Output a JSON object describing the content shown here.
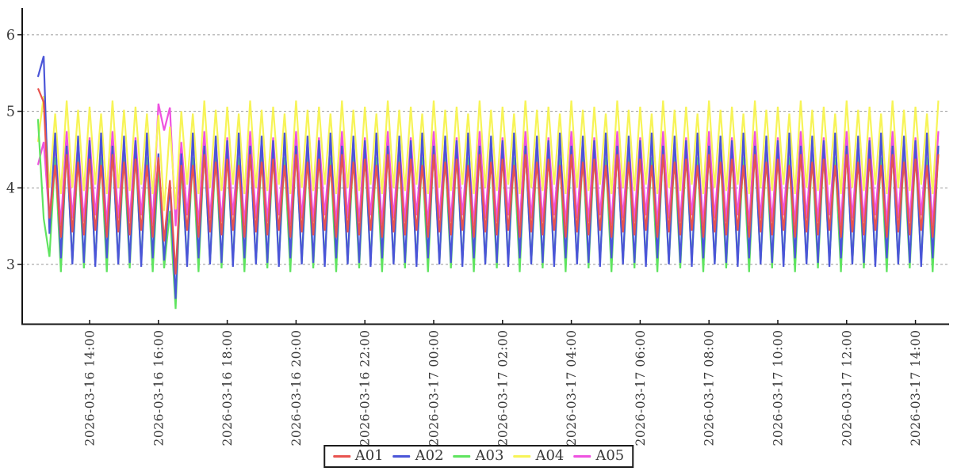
{
  "chart_data": {
    "type": "line",
    "title": "",
    "xlabel": "",
    "ylabel": "",
    "x_start": "2026-03-16 12:30",
    "x_step_minutes": 10,
    "x_count": 158,
    "x_tick_labels": [
      "2026-03-16 14:00",
      "2026-03-16 16:00",
      "2026-03-16 18:00",
      "2026-03-16 20:00",
      "2026-03-16 22:00",
      "2026-03-17 00:00",
      "2026-03-17 02:00",
      "2026-03-17 04:00",
      "2026-03-17 06:00",
      "2026-03-17 08:00",
      "2026-03-17 10:00",
      "2026-03-17 12:00",
      "2026-03-17 14:00"
    ],
    "x_tick_indices": [
      9,
      21,
      33,
      45,
      57,
      69,
      81,
      93,
      105,
      117,
      129,
      141,
      153
    ],
    "y_tick_labels": [
      "3",
      "4",
      "5",
      "6"
    ],
    "y_ticks": [
      3,
      4,
      5,
      6
    ],
    "ylim": [
      2.22,
      6.35
    ],
    "grid": "horizontal-dashed",
    "legend_position": "bottom-center",
    "axis_color": "#151515",
    "grid_color": "#999999",
    "text_color": "#3a3a3a",
    "series": [
      {
        "name": "A01",
        "color": "#e8534f",
        "values": [
          5.3,
          5.12,
          3.6,
          4.3,
          3.35,
          4.44,
          3.42,
          4.34,
          3.38,
          4.38,
          3.44,
          4.3,
          3.35,
          4.44,
          3.42,
          4.34,
          3.38,
          4.38,
          3.44,
          4.3,
          3.35,
          4.4,
          3.3,
          4.1,
          2.87,
          4.3,
          3.44,
          4.3,
          3.35,
          4.44,
          3.42,
          4.34,
          3.38,
          4.38,
          3.44,
          4.3,
          3.35,
          4.44,
          3.42,
          4.34,
          3.38,
          4.38,
          3.44,
          4.3,
          3.35,
          4.44,
          3.42,
          4.34,
          3.38,
          4.38,
          3.44,
          4.3,
          3.35,
          4.44,
          3.42,
          4.34,
          3.38,
          4.38,
          3.44,
          4.3,
          3.35,
          4.44,
          3.42,
          4.34,
          3.38,
          4.38,
          3.44,
          4.3,
          3.35,
          4.44,
          3.42,
          4.34,
          3.38,
          4.38,
          3.44,
          4.3,
          3.35,
          4.44,
          3.42,
          4.34,
          3.38,
          4.38,
          3.44,
          4.3,
          3.35,
          4.44,
          3.42,
          4.34,
          3.38,
          4.38,
          3.44,
          4.3,
          3.35,
          4.44,
          3.42,
          4.34,
          3.38,
          4.38,
          3.44,
          4.3,
          3.35,
          4.44,
          3.42,
          4.34,
          3.38,
          4.38,
          3.44,
          4.3,
          3.35,
          4.44,
          3.42,
          4.34,
          3.38,
          4.38,
          3.44,
          4.3,
          3.35,
          4.44,
          3.42,
          4.34,
          3.38,
          4.38,
          3.44,
          4.3,
          3.35,
          4.44,
          3.42,
          4.34,
          3.38,
          4.38,
          3.44,
          4.3,
          3.35,
          4.44,
          3.42,
          4.34,
          3.38,
          4.38,
          3.44,
          4.3,
          3.35,
          4.44,
          3.42,
          4.34,
          3.38,
          4.38,
          3.44,
          4.3,
          3.35,
          4.44,
          3.42,
          4.34,
          3.38,
          4.38,
          3.44,
          4.3,
          3.35,
          4.44
        ]
      },
      {
        "name": "A02",
        "color": "#4a55d8",
        "values": [
          5.45,
          5.72,
          3.4,
          4.72,
          3.08,
          4.55,
          3.0,
          4.68,
          3.02,
          4.62,
          2.97,
          4.72,
          3.08,
          4.55,
          3.0,
          4.68,
          3.02,
          4.62,
          2.97,
          4.72,
          3.08,
          4.45,
          3.05,
          4.05,
          2.55,
          4.45,
          2.97,
          4.72,
          3.08,
          4.55,
          3.0,
          4.68,
          3.02,
          4.62,
          2.97,
          4.72,
          3.08,
          4.55,
          3.0,
          4.68,
          3.02,
          4.62,
          2.97,
          4.72,
          3.08,
          4.55,
          3.0,
          4.68,
          3.02,
          4.62,
          2.97,
          4.72,
          3.08,
          4.55,
          3.0,
          4.68,
          3.02,
          4.62,
          2.97,
          4.72,
          3.08,
          4.55,
          3.0,
          4.68,
          3.02,
          4.62,
          2.97,
          4.72,
          3.08,
          4.55,
          3.0,
          4.68,
          3.02,
          4.62,
          2.97,
          4.72,
          3.08,
          4.55,
          3.0,
          4.68,
          3.02,
          4.62,
          2.97,
          4.72,
          3.08,
          4.55,
          3.0,
          4.68,
          3.02,
          4.62,
          2.97,
          4.72,
          3.08,
          4.55,
          3.0,
          4.68,
          3.02,
          4.62,
          2.97,
          4.72,
          3.08,
          4.55,
          3.0,
          4.68,
          3.02,
          4.62,
          2.97,
          4.72,
          3.08,
          4.55,
          3.0,
          4.68,
          3.02,
          4.62,
          2.97,
          4.72,
          3.08,
          4.55,
          3.0,
          4.68,
          3.02,
          4.62,
          2.97,
          4.72,
          3.08,
          4.55,
          3.0,
          4.68,
          3.02,
          4.62,
          2.97,
          4.72,
          3.08,
          4.55,
          3.0,
          4.68,
          3.02,
          4.62,
          2.97,
          4.72,
          3.08,
          4.55,
          3.0,
          4.68,
          3.02,
          4.62,
          2.97,
          4.72,
          3.08,
          4.55,
          3.0,
          4.68,
          3.02,
          4.62,
          2.97,
          4.72,
          3.08,
          4.55
        ]
      },
      {
        "name": "A03",
        "color": "#5fe45f",
        "values": [
          4.9,
          3.6,
          3.1,
          4.4,
          2.9,
          4.55,
          3.02,
          4.44,
          2.95,
          4.48,
          3.04,
          4.4,
          2.9,
          4.55,
          3.02,
          4.44,
          2.95,
          4.48,
          3.04,
          4.4,
          2.9,
          4.3,
          2.95,
          3.7,
          2.42,
          4.3,
          3.04,
          4.4,
          2.9,
          4.55,
          3.02,
          4.44,
          2.95,
          4.48,
          3.04,
          4.4,
          2.9,
          4.55,
          3.02,
          4.44,
          2.95,
          4.48,
          3.04,
          4.4,
          2.9,
          4.55,
          3.02,
          4.44,
          2.95,
          4.48,
          3.04,
          4.4,
          2.9,
          4.55,
          3.02,
          4.44,
          2.95,
          4.48,
          3.04,
          4.4,
          2.9,
          4.55,
          3.02,
          4.44,
          2.95,
          4.48,
          3.04,
          4.4,
          2.9,
          4.55,
          3.02,
          4.44,
          2.95,
          4.48,
          3.04,
          4.4,
          2.9,
          4.55,
          3.02,
          4.44,
          2.95,
          4.48,
          3.04,
          4.4,
          2.9,
          4.55,
          3.02,
          4.44,
          2.95,
          4.48,
          3.04,
          4.4,
          2.9,
          4.55,
          3.02,
          4.44,
          2.95,
          4.48,
          3.04,
          4.4,
          2.9,
          4.55,
          3.02,
          4.44,
          2.95,
          4.48,
          3.04,
          4.4,
          2.9,
          4.55,
          3.02,
          4.44,
          2.95,
          4.48,
          3.04,
          4.4,
          2.9,
          4.55,
          3.02,
          4.44,
          2.95,
          4.48,
          3.04,
          4.4,
          2.9,
          4.55,
          3.02,
          4.44,
          2.95,
          4.48,
          3.04,
          4.4,
          2.9,
          4.55,
          3.02,
          4.44,
          2.95,
          4.48,
          3.04,
          4.4,
          2.9,
          4.55,
          3.02,
          4.44,
          2.95,
          4.48,
          3.04,
          4.4,
          2.9,
          4.55,
          3.02,
          4.44,
          2.95,
          4.48,
          3.04,
          4.4,
          2.9,
          4.55
        ]
      },
      {
        "name": "A04",
        "color": "#f7f457",
        "values": [
          4.6,
          5.2,
          4.0,
          4.97,
          3.92,
          5.14,
          4.0,
          5.02,
          3.96,
          5.06,
          4.04,
          4.97,
          3.92,
          5.14,
          4.0,
          5.02,
          3.96,
          5.06,
          4.04,
          4.97,
          3.92,
          4.95,
          3.7,
          4.8,
          3.72,
          5.0,
          4.04,
          4.97,
          3.92,
          5.14,
          4.0,
          5.02,
          3.96,
          5.06,
          4.04,
          4.97,
          3.92,
          5.14,
          4.0,
          5.02,
          3.96,
          5.06,
          4.04,
          4.97,
          3.92,
          5.14,
          4.0,
          5.02,
          3.96,
          5.06,
          4.04,
          4.97,
          3.92,
          5.14,
          4.0,
          5.02,
          3.96,
          5.06,
          4.04,
          4.97,
          3.92,
          5.14,
          4.0,
          5.02,
          3.96,
          5.06,
          4.04,
          4.97,
          3.92,
          5.14,
          4.0,
          5.02,
          3.96,
          5.06,
          4.04,
          4.97,
          3.92,
          5.14,
          4.0,
          5.02,
          3.96,
          5.06,
          4.04,
          4.97,
          3.92,
          5.14,
          4.0,
          5.02,
          3.96,
          5.06,
          4.04,
          4.97,
          3.92,
          5.14,
          4.0,
          5.02,
          3.96,
          5.06,
          4.04,
          4.97,
          3.92,
          5.14,
          4.0,
          5.02,
          3.96,
          5.06,
          4.04,
          4.97,
          3.92,
          5.14,
          4.0,
          5.02,
          3.96,
          5.06,
          4.04,
          4.97,
          3.92,
          5.14,
          4.0,
          5.02,
          3.96,
          5.06,
          4.04,
          4.97,
          3.92,
          5.14,
          4.0,
          5.02,
          3.96,
          5.06,
          4.04,
          4.97,
          3.92,
          5.14,
          4.0,
          5.02,
          3.96,
          5.06,
          4.04,
          4.97,
          3.92,
          5.14,
          4.0,
          5.02,
          3.96,
          5.06,
          4.04,
          4.97,
          3.92,
          5.14,
          4.0,
          5.02,
          3.96,
          5.06,
          4.04,
          4.97,
          3.92,
          5.14
        ]
      },
      {
        "name": "A05",
        "color": "#ee52e0",
        "values": [
          4.3,
          4.6,
          3.58,
          4.58,
          3.52,
          4.74,
          3.6,
          4.62,
          3.56,
          4.66,
          3.64,
          4.58,
          3.52,
          4.74,
          3.6,
          4.62,
          3.56,
          4.66,
          3.64,
          4.58,
          3.52,
          5.1,
          4.75,
          5.05,
          3.5,
          4.6,
          3.64,
          4.58,
          3.52,
          4.74,
          3.6,
          4.62,
          3.56,
          4.66,
          3.64,
          4.58,
          3.52,
          4.74,
          3.6,
          4.62,
          3.56,
          4.66,
          3.64,
          4.58,
          3.52,
          4.74,
          3.6,
          4.62,
          3.56,
          4.66,
          3.64,
          4.58,
          3.52,
          4.74,
          3.6,
          4.62,
          3.56,
          4.66,
          3.64,
          4.58,
          3.52,
          4.74,
          3.6,
          4.62,
          3.56,
          4.66,
          3.64,
          4.58,
          3.52,
          4.74,
          3.6,
          4.62,
          3.56,
          4.66,
          3.64,
          4.58,
          3.52,
          4.74,
          3.6,
          4.62,
          3.56,
          4.66,
          3.64,
          4.58,
          3.52,
          4.74,
          3.6,
          4.62,
          3.56,
          4.66,
          3.64,
          4.58,
          3.52,
          4.74,
          3.6,
          4.62,
          3.56,
          4.66,
          3.64,
          4.58,
          3.52,
          4.74,
          3.6,
          4.62,
          3.56,
          4.66,
          3.64,
          4.58,
          3.52,
          4.74,
          3.6,
          4.62,
          3.56,
          4.66,
          3.64,
          4.58,
          3.52,
          4.74,
          3.6,
          4.62,
          3.56,
          4.66,
          3.64,
          4.58,
          3.52,
          4.74,
          3.6,
          4.62,
          3.56,
          4.66,
          3.64,
          4.58,
          3.52,
          4.74,
          3.6,
          4.62,
          3.56,
          4.66,
          3.64,
          4.58,
          3.52,
          4.74,
          3.6,
          4.62,
          3.56,
          4.66,
          3.64,
          4.58,
          3.52,
          4.74,
          3.6,
          4.62,
          3.56,
          4.66,
          3.64,
          4.58,
          3.52,
          4.74
        ]
      }
    ]
  },
  "legend": {
    "items": [
      "A01",
      "A02",
      "A03",
      "A04",
      "A05"
    ]
  }
}
